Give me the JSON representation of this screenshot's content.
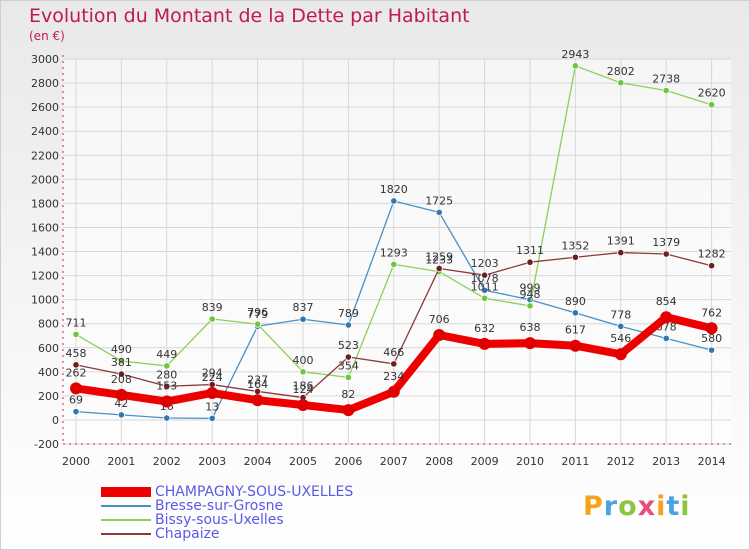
{
  "header": {
    "title": "Evolution du Montant de la Dette par Habitant",
    "unit": "(en €)"
  },
  "brand": {
    "text": "Proxiti",
    "colors": [
      "#f7a21b",
      "#4aa3df",
      "#8cc63f",
      "#e94e77",
      "#f7a21b",
      "#4aa3df",
      "#8cc63f"
    ]
  },
  "colors": {
    "title": "#c2185b",
    "legend_text": "#5a5ae6",
    "axis_text": "#333333",
    "grid": "#d8d8d8"
  },
  "chart_data": {
    "type": "line",
    "title": "Evolution du Montant de la Dette par Habitant",
    "ylabel": "(en €)",
    "xlabel": "",
    "x": [
      "2000",
      "2001",
      "2002",
      "2003",
      "2004",
      "2005",
      "2006",
      "2007",
      "2008",
      "2009",
      "2010",
      "2011",
      "2012",
      "2013",
      "2014"
    ],
    "ylim": [
      -200,
      3000
    ],
    "yticks": [
      -200,
      0,
      200,
      400,
      600,
      800,
      1000,
      1200,
      1400,
      1600,
      1800,
      2000,
      2200,
      2400,
      2600,
      2800,
      3000
    ],
    "grid": true,
    "legend_position": "bottom-left",
    "series": [
      {
        "name": "Bresse-sur-Grosne",
        "color": "#4a90c4",
        "marker": "#2f77b5",
        "emphasis": false,
        "values": [
          69,
          42,
          16,
          13,
          779,
          837,
          789,
          1820,
          1725,
          1078,
          999,
          890,
          778,
          678,
          580
        ],
        "labels": [
          "69",
          "42",
          "16",
          "13",
          "779",
          "837",
          "789",
          "1820",
          "1725",
          "1078",
          "999",
          "890",
          "778",
          "678",
          "580"
        ]
      },
      {
        "name": "Bissy-sous-Uxelles",
        "color": "#8ad15a",
        "marker": "#6cc83a",
        "emphasis": false,
        "values": [
          711,
          490,
          449,
          839,
          796,
          400,
          354,
          1293,
          1233,
          1011,
          948,
          2943,
          2802,
          2738,
          2620
        ],
        "labels": [
          "711",
          "490",
          "449",
          "839",
          "796",
          "400",
          "354",
          "1293",
          "1233",
          "1011",
          "948",
          "2943",
          "2802",
          "2738",
          "2620"
        ]
      },
      {
        "name": "Chapaize",
        "color": "#8b3a3a",
        "marker": "#6b1f1f",
        "emphasis": false,
        "values": [
          458,
          381,
          280,
          294,
          237,
          186,
          523,
          466,
          1259,
          1203,
          1311,
          1352,
          1391,
          1379,
          1282
        ],
        "labels": [
          "458",
          "381",
          "280",
          "294",
          "237",
          "186",
          "523",
          "466",
          "1259",
          "1203",
          "1311",
          "1352",
          "1391",
          "1379",
          "1282"
        ]
      },
      {
        "name": "CHAMPAGNY-SOUS-UXELLES",
        "color": "#ee0000",
        "marker": "#e00000",
        "emphasis": true,
        "values": [
          262,
          208,
          153,
          224,
          164,
          124,
          82,
          234,
          706,
          632,
          638,
          617,
          546,
          854,
          762
        ],
        "labels": [
          "262",
          "208",
          "153",
          "224",
          "164",
          "124",
          "82",
          "234",
          "706",
          "632",
          "638",
          "617",
          "546",
          "854",
          "762"
        ]
      }
    ],
    "legend": [
      {
        "name": "CHAMPAGNY-SOUS-UXELLES",
        "color": "#ee0000",
        "thick": true
      },
      {
        "name": "Bresse-sur-Grosne",
        "color": "#4a90c4",
        "thick": false
      },
      {
        "name": "Bissy-sous-Uxelles",
        "color": "#8ad15a",
        "thick": false
      },
      {
        "name": "Chapaize",
        "color": "#8b3a3a",
        "thick": false
      }
    ]
  }
}
